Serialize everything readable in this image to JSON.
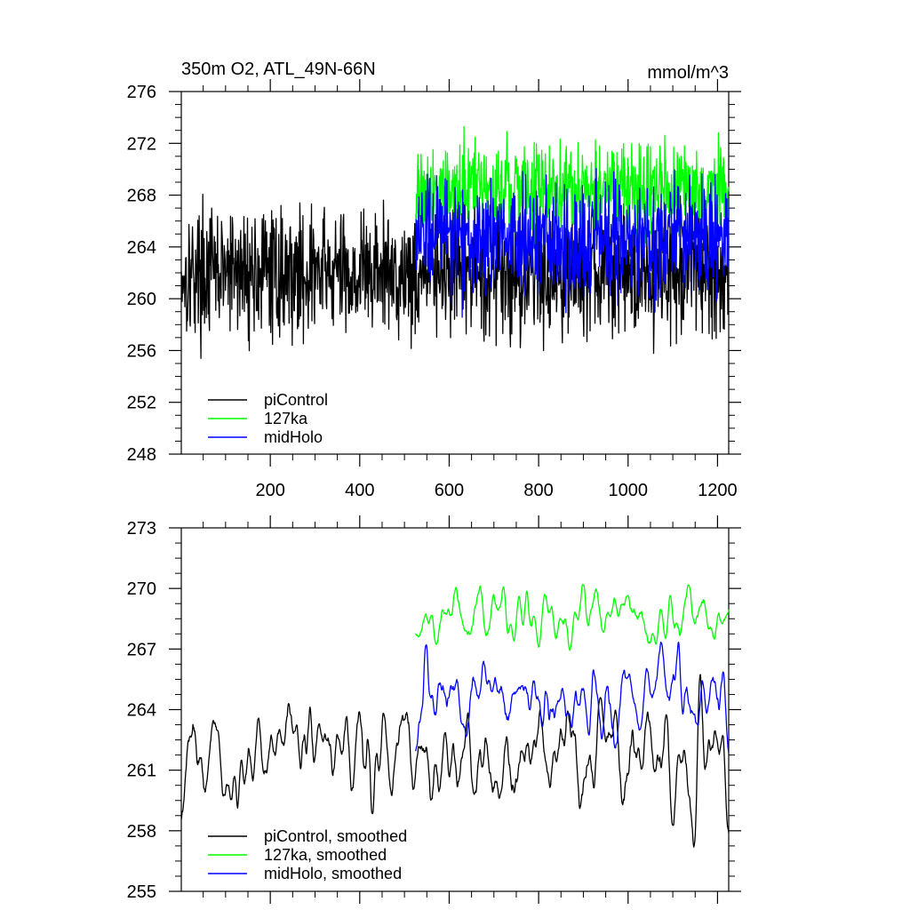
{
  "chart_data": [
    {
      "type": "line",
      "title": "350m O2, ATL_49N-66N",
      "units": "mmol/m^3",
      "xlim": [
        1,
        1225
      ],
      "ylim": [
        248,
        276
      ],
      "yticks": [
        248,
        252,
        256,
        260,
        264,
        268,
        272,
        276
      ],
      "xticks": [
        200,
        400,
        600,
        800,
        1000,
        1200
      ],
      "legend_position": "bottom-left",
      "grid": false,
      "series": [
        {
          "name": "piControl",
          "color": "#000000",
          "x_range": [
            1,
            1225
          ],
          "mean": 262,
          "amplitude": 4.2,
          "smooth": false
        },
        {
          "name": "127ka",
          "color": "#00ff00",
          "x_range": [
            525,
            1225
          ],
          "mean": 268.5,
          "amplitude": 3.0,
          "smooth": false
        },
        {
          "name": "midHolo",
          "color": "#0000ff",
          "x_range": [
            525,
            1225
          ],
          "mean": 264.8,
          "amplitude": 3.8,
          "smooth": false
        }
      ]
    },
    {
      "type": "line",
      "title": "",
      "units": "",
      "xlim": [
        1,
        1225
      ],
      "ylim": [
        255,
        273
      ],
      "yticks": [
        255,
        258,
        261,
        264,
        267,
        270,
        273
      ],
      "xticks": [
        200,
        400,
        600,
        800,
        1000,
        1200
      ],
      "legend_position": "bottom-left",
      "grid": false,
      "series": [
        {
          "name": "piControl, smoothed",
          "color": "#000000",
          "x_range": [
            1,
            1225
          ],
          "mean": 261.7,
          "amplitude": 2.4,
          "smooth": true
        },
        {
          "name": "127ka, smoothed",
          "color": "#00ff00",
          "x_range": [
            525,
            1225
          ],
          "mean": 268.6,
          "amplitude": 1.3,
          "smooth": true
        },
        {
          "name": "midHolo, smoothed",
          "color": "#0000ff",
          "x_range": [
            525,
            1225
          ],
          "mean": 264.6,
          "amplitude": 1.8,
          "smooth": true
        }
      ]
    }
  ]
}
